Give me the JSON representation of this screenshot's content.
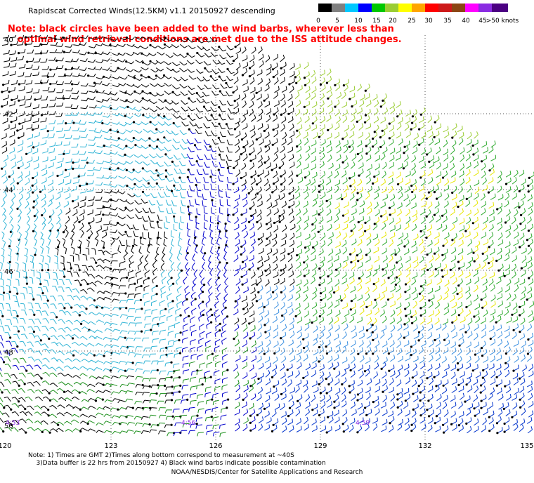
{
  "title": "Rapidscat Corrected Winds(12.5KM) v1.1 20150927 descending",
  "note_line1": "Note: black circles have been added to the wind barbs, wherever less than",
  "note_line2": "   optimal wind retrieval conditions are met due to the ISS attitude changes.",
  "colorbar": {
    "colors": [
      "#000000",
      "#808080",
      "#00c8ff",
      "#0000ff",
      "#00c800",
      "#9acd32",
      "#ffff00",
      "#ffa500",
      "#ff0000",
      "#cd1a1a",
      "#8b4513",
      "#ff00ff",
      "#8a2be2",
      "#4b0082"
    ],
    "labels": [
      "0",
      "5",
      "10",
      "15",
      "20",
      "25",
      "30",
      "35",
      "40",
      "45",
      ">50 knots"
    ]
  },
  "lon_labels": [
    "120",
    "123",
    "126",
    "129",
    "132",
    "135"
  ],
  "lat_labels": [
    "40",
    "42",
    "44",
    "46",
    "48",
    "50"
  ],
  "time_labels": [
    "4:53",
    "4:56",
    "4:59"
  ],
  "footnote_line1": "Note: 1) Times are GMT 2)Times along bottom correspond to measurement at ~40S",
  "footnote_line2": "    3)Data buffer is 22 hrs from 20150927 4) Black wind barbs indicate possible contamination",
  "credit": "NOAA/NESDIS/Center for Satellite Applications and Research"
}
